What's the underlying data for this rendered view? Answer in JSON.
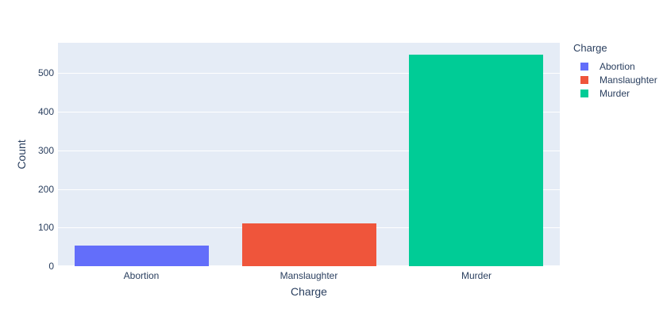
{
  "chart_data": {
    "type": "bar",
    "categories": [
      "Abortion",
      "Manslaughter",
      "Murder"
    ],
    "values": [
      54,
      110,
      549
    ],
    "series_colors": [
      "#636EFA",
      "#EF553B",
      "#00CC96"
    ],
    "title": "",
    "xlabel": "Charge",
    "ylabel": "Count",
    "ylim": [
      0,
      579
    ],
    "yticks": [
      0,
      100,
      200,
      300,
      400,
      500
    ],
    "grid": true,
    "legend_position": "right"
  },
  "legend": {
    "title": "Charge",
    "items": [
      {
        "label": "Abortion",
        "color": "#636EFA"
      },
      {
        "label": "Manslaughter",
        "color": "#EF553B"
      },
      {
        "label": "Murder",
        "color": "#00CC96"
      }
    ]
  },
  "colors": {
    "paper_background": "#FFFFFF",
    "plot_background": "#E5ECF6",
    "gridline": "#FFFFFF",
    "text": "#2A3F5F"
  }
}
